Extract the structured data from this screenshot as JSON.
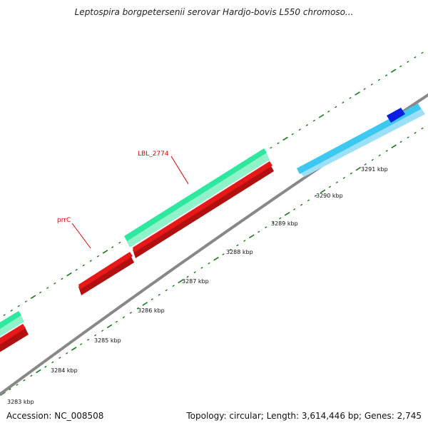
{
  "title": "Leptospira borgpetersenii serovar Hardjo-bovis L550 chromoso...",
  "footer": {
    "accession": "Accession: NC_008508",
    "summary": "Topology: circular; Length: 3,614,446 bp; Genes: 2,745"
  },
  "scale": {
    "unit": "kbp",
    "labeled_positions_kbp": [
      3283,
      3284,
      3285,
      3286,
      3287,
      3288,
      3289,
      3290,
      3291
    ]
  },
  "colors": {
    "backbone": "#888888",
    "forward_gene": "#2ee8a0",
    "reverse_gene": "#e81818",
    "other_feature": "#3cc8f0",
    "highlight_feature": "#0a1ee0",
    "tick_marks": "#1a7a1a",
    "label_text": "#e00000"
  },
  "gene_labels": [
    "LBL_2774",
    "prrC"
  ]
}
